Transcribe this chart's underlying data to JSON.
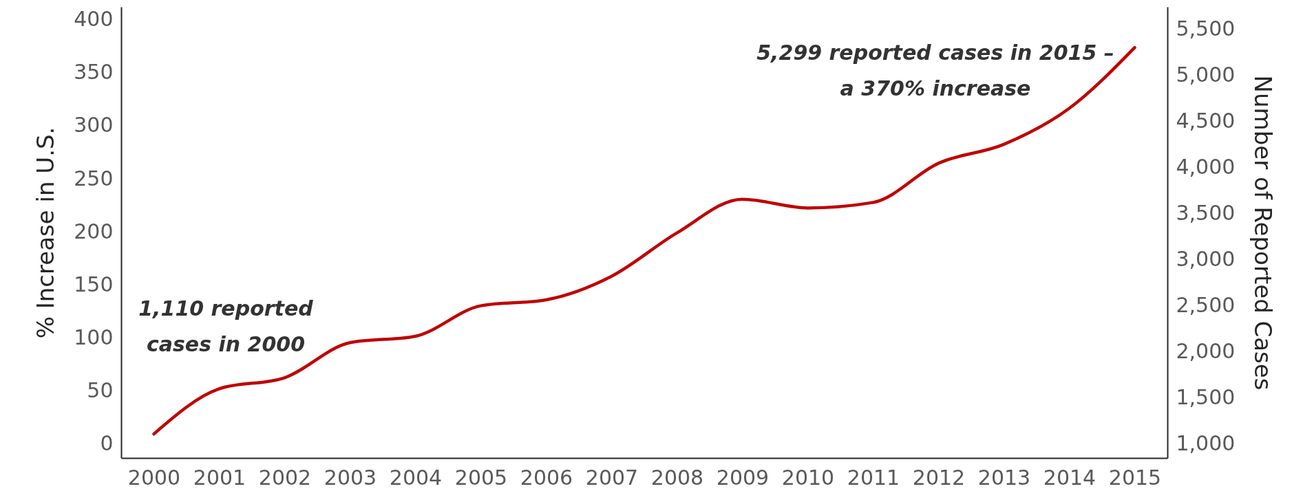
{
  "chart_data": {
    "type": "line",
    "ylabel": "% Increase in U.S.",
    "y2label": "Number of Reported Cases",
    "categories": [
      "2000",
      "2001",
      "2002",
      "2003",
      "2004",
      "2005",
      "2006",
      "2007",
      "2008",
      "2009",
      "2010",
      "2011",
      "2012",
      "2013",
      "2014",
      "2015"
    ],
    "ylim": [
      -13,
      412
    ],
    "yticks": [
      0,
      50,
      100,
      150,
      200,
      250,
      300,
      350,
      400
    ],
    "y2lim": [
      850,
      5740
    ],
    "y2ticks": [
      {
        "value": 1000,
        "label": "1,000"
      },
      {
        "value": 1500,
        "label": "1,500"
      },
      {
        "value": 2000,
        "label": "2,000"
      },
      {
        "value": 2500,
        "label": "2,500"
      },
      {
        "value": 3000,
        "label": "3,000"
      },
      {
        "value": 3500,
        "label": "3,500"
      },
      {
        "value": 4000,
        "label": "4,000"
      },
      {
        "value": 4500,
        "label": "4,500"
      },
      {
        "value": 5000,
        "label": "5,000"
      },
      {
        "value": 5500,
        "label": "5,500"
      }
    ],
    "series": [
      {
        "color": "#c00000",
        "axis": "y2",
        "values": [
          1110,
          1600,
          1720,
          2100,
          2170,
          2500,
          2565,
          2820,
          3290,
          3655,
          3560,
          3620,
          4045,
          4250,
          4640,
          5299
        ]
      }
    ],
    "annotations": [
      "1,110 reported cases in 2000",
      "5,299 reported cases in 2015 – a 370% increase"
    ],
    "grid": false,
    "line_style": "solid"
  }
}
